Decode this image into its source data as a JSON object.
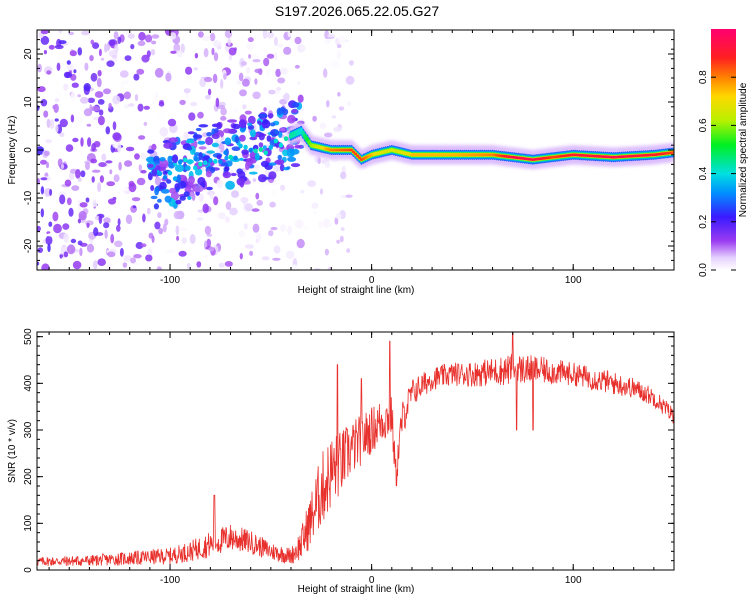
{
  "figure_title": "S197.2026.065.22.05.G27",
  "colors": {
    "snr_line": "#e8302c",
    "background": "#ffffff",
    "axis": "#000000"
  },
  "chart_data": [
    {
      "type": "heatmap",
      "name": "spectrogram",
      "xlabel": "Height of straight line (km)",
      "ylabel": "Frequency (Hz)",
      "xlim": [
        -166,
        150
      ],
      "ylim": [
        -25,
        25
      ],
      "xticks": [
        -100,
        0,
        100
      ],
      "yticks": [
        -20,
        -10,
        0,
        10,
        20
      ],
      "colorbar": {
        "label": "Normalized spectral amplitude",
        "range": [
          0,
          1
        ],
        "ticks": [
          "0.0",
          "0.2",
          "0.4",
          "0.6",
          "0.8"
        ],
        "colormap": "rainbow (white-violet-blue-cyan-green-yellow-red-magenta)"
      },
      "ridge": {
        "description": "dominant frequency trace vs height",
        "x": [
          -100,
          -90,
          -80,
          -70,
          -60,
          -50,
          -40,
          -35,
          -30,
          -20,
          -10,
          -5,
          0,
          10,
          20,
          40,
          60,
          70,
          80,
          90,
          100,
          120,
          140,
          150
        ],
        "y": [
          -5,
          -3,
          -1,
          -1,
          0,
          1,
          3,
          4,
          1,
          0,
          0,
          -2,
          -1,
          0,
          -1,
          -1,
          -1,
          -1.5,
          -2,
          -1.5,
          -1,
          -1.5,
          -1,
          -0.5
        ],
        "amplitude": [
          0.25,
          0.3,
          0.3,
          0.35,
          0.4,
          0.45,
          0.45,
          0.4,
          0.6,
          0.75,
          0.8,
          0.8,
          0.7,
          0.65,
          0.7,
          0.7,
          0.75,
          0.9,
          0.9,
          0.8,
          0.85,
          0.9,
          0.85,
          0.8
        ]
      },
      "noise_extent_x": [
        -166,
        -40
      ]
    },
    {
      "type": "line",
      "name": "snr",
      "xlabel": "Height of straight line (km)",
      "ylabel": "SNR (10 * v/v)",
      "xlim": [
        -166,
        150
      ],
      "ylim": [
        0,
        510
      ],
      "xticks": [
        -100,
        0,
        100
      ],
      "yticks": [
        0,
        100,
        200,
        300,
        400,
        500
      ],
      "series": [
        {
          "name": "SNR",
          "envelope_x": [
            -166,
            -140,
            -120,
            -100,
            -90,
            -80,
            -70,
            -60,
            -50,
            -40,
            -35,
            -30,
            -25,
            -20,
            -15,
            -10,
            -5,
            0,
            5,
            10,
            12,
            15,
            20,
            30,
            40,
            50,
            60,
            70,
            80,
            90,
            100,
            110,
            120,
            130,
            140,
            150
          ],
          "envelope_y": [
            18,
            20,
            25,
            30,
            40,
            55,
            70,
            60,
            40,
            30,
            55,
            110,
            170,
            210,
            230,
            260,
            280,
            300,
            320,
            330,
            200,
            320,
            380,
            410,
            420,
            420,
            425,
            430,
            430,
            425,
            420,
            410,
            400,
            390,
            370,
            330
          ],
          "noise_amplitude": [
            10,
            12,
            15,
            18,
            22,
            28,
            30,
            25,
            20,
            18,
            35,
            60,
            80,
            80,
            70,
            60,
            55,
            50,
            50,
            45,
            40,
            40,
            30,
            25,
            25,
            28,
            30,
            35,
            30,
            28,
            25,
            25,
            25,
            22,
            20,
            18
          ],
          "spikes": [
            [
              -78,
              160
            ],
            [
              -17,
              440
            ],
            [
              -5,
              410
            ],
            [
              9,
              490
            ],
            [
              70,
              510
            ],
            [
              72,
              300
            ],
            [
              80,
              300
            ]
          ]
        }
      ]
    }
  ]
}
